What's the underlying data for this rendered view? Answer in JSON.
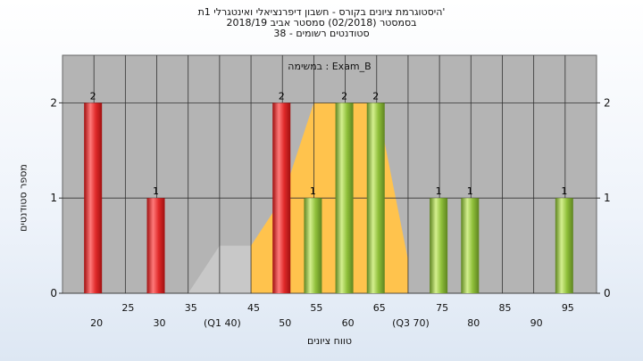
{
  "title_lines": [
    "היסטוגרמת ציונים בקורס - חשבון דיפרנציאלי ואינטגרלי 1ת'",
    "בסמסטר  (02/2018)  סמסטר אביב 2018/19",
    "סטודנטים רשומים - 38"
  ],
  "chart_data": {
    "type": "bar",
    "subtitle": "במשימה : Exam_B",
    "xlabel": "טווח ציונים",
    "ylabel": "מספר סטודנטים",
    "xlim": [
      15,
      100
    ],
    "ylim": [
      0,
      2.5
    ],
    "y_ticks": [
      0,
      1,
      2
    ],
    "x_ticks": [
      {
        "value": 20,
        "label": "20",
        "row": 1
      },
      {
        "value": 25,
        "label": "25",
        "row": 0
      },
      {
        "value": 30,
        "label": "30",
        "row": 1
      },
      {
        "value": 35,
        "label": "35",
        "row": 0
      },
      {
        "value": 40,
        "label": "(Q1 40)",
        "row": 1
      },
      {
        "value": 45,
        "label": "45",
        "row": 0
      },
      {
        "value": 50,
        "label": "50",
        "row": 1
      },
      {
        "value": 55,
        "label": "55",
        "row": 0
      },
      {
        "value": 60,
        "label": "60",
        "row": 1
      },
      {
        "value": 65,
        "label": "65",
        "row": 0
      },
      {
        "value": 70,
        "label": "(Q3 70)",
        "row": 1
      },
      {
        "value": 75,
        "label": "75",
        "row": 0
      },
      {
        "value": 80,
        "label": "80",
        "row": 1
      },
      {
        "value": 85,
        "label": "85",
        "row": 0
      },
      {
        "value": 90,
        "label": "90",
        "row": 1
      },
      {
        "value": 95,
        "label": "95",
        "row": 0
      }
    ],
    "bars": [
      {
        "x": 20,
        "value": 2,
        "color": "red"
      },
      {
        "x": 30,
        "value": 1,
        "color": "red"
      },
      {
        "x": 50,
        "value": 2,
        "color": "red"
      },
      {
        "x": 55,
        "value": 1,
        "color": "green"
      },
      {
        "x": 60,
        "value": 2,
        "color": "green"
      },
      {
        "x": 65,
        "value": 2,
        "color": "green"
      },
      {
        "x": 75,
        "value": 1,
        "color": "green"
      },
      {
        "x": 80,
        "value": 1,
        "color": "green"
      },
      {
        "x": 95,
        "value": 1,
        "color": "green"
      }
    ],
    "background_areas": [
      {
        "color": "#c8c8c8",
        "points": [
          [
            35,
            0
          ],
          [
            40,
            0.5
          ],
          [
            45,
            0.5
          ],
          [
            45,
            0
          ]
        ]
      },
      {
        "color": "#ffc34d",
        "points": [
          [
            45,
            0
          ],
          [
            45,
            0.5
          ],
          [
            50,
            1
          ],
          [
            55,
            2
          ],
          [
            65,
            2
          ],
          [
            70,
            0.35
          ],
          [
            70,
            0
          ]
        ]
      }
    ],
    "colors": {
      "plot_background": "#b4b4b4",
      "red_bar": "#e02a2a",
      "green_bar": "#8fbf3a",
      "grid": "#333333"
    },
    "grid": true
  }
}
